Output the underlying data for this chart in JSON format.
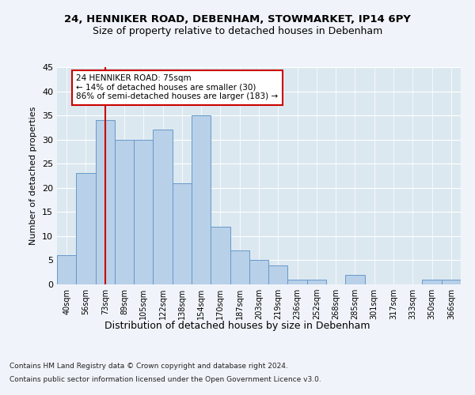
{
  "title1": "24, HENNIKER ROAD, DEBENHAM, STOWMARKET, IP14 6PY",
  "title2": "Size of property relative to detached houses in Debenham",
  "xlabel": "Distribution of detached houses by size in Debenham",
  "ylabel": "Number of detached properties",
  "categories": [
    "40sqm",
    "56sqm",
    "73sqm",
    "89sqm",
    "105sqm",
    "122sqm",
    "138sqm",
    "154sqm",
    "170sqm",
    "187sqm",
    "203sqm",
    "219sqm",
    "236sqm",
    "252sqm",
    "268sqm",
    "285sqm",
    "301sqm",
    "317sqm",
    "333sqm",
    "350sqm",
    "366sqm"
  ],
  "values": [
    6,
    23,
    34,
    30,
    30,
    32,
    21,
    35,
    12,
    7,
    5,
    4,
    1,
    1,
    0,
    2,
    0,
    0,
    0,
    1,
    1
  ],
  "bar_color": "#b8d0e8",
  "bar_edge_color": "#6699cc",
  "vline_x": 2,
  "vline_color": "#cc0000",
  "ylim": [
    0,
    45
  ],
  "yticks": [
    0,
    5,
    10,
    15,
    20,
    25,
    30,
    35,
    40,
    45
  ],
  "annotation_text": "24 HENNIKER ROAD: 75sqm\n← 14% of detached houses are smaller (30)\n86% of semi-detached houses are larger (183) →",
  "annotation_box_color": "#ffffff",
  "annotation_box_edge": "#cc0000",
  "footer1": "Contains HM Land Registry data © Crown copyright and database right 2024.",
  "footer2": "Contains public sector information licensed under the Open Government Licence v3.0.",
  "background_color": "#f0f4fa",
  "plot_bg_color": "#dce8f0"
}
